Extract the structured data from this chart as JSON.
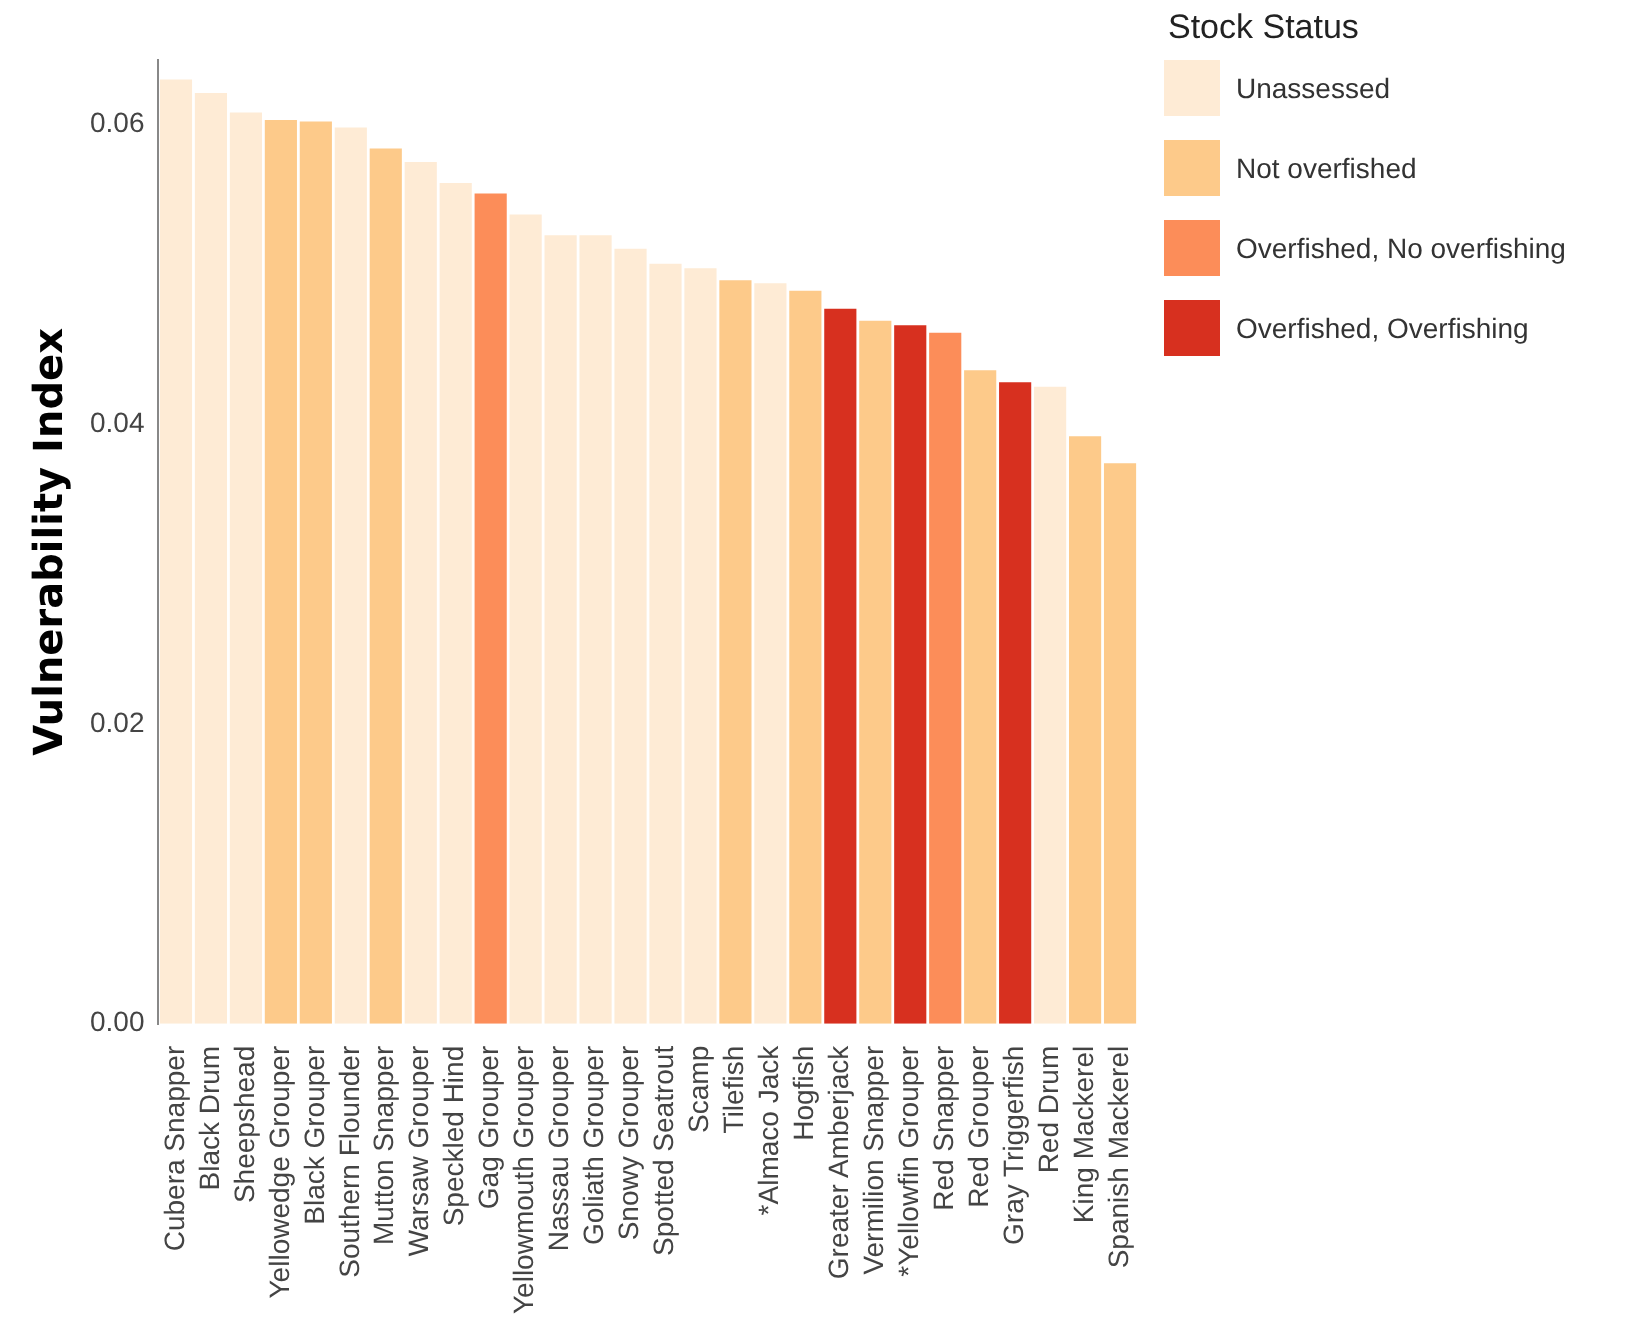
{
  "chart_data": {
    "type": "bar",
    "ylabel": "Vulnerability Index",
    "legend_title": "Stock Status",
    "categories": [
      "Cubera Snapper",
      "Black Drum",
      "Sheepshead",
      "Yellowedge Grouper",
      "Black Grouper",
      "Southern Flounder",
      "Mutton Snapper",
      "Warsaw Grouper",
      "Speckled Hind",
      "Gag Grouper",
      "Yellowmouth Grouper",
      "Nassau Grouper",
      "Goliath Grouper",
      "Snowy Grouper",
      "Spotted Seatrout",
      "Scamp",
      "Tilefish",
      "*Almaco Jack",
      "Hogfish",
      "Greater Amberjack",
      "Vermilion Snapper",
      "*Yellowfin Grouper",
      "Red Snapper",
      "Red Grouper",
      "Gray Triggerfish",
      "Red Drum",
      "King Mackerel",
      "Spanish Mackerel"
    ],
    "stacked": true,
    "series": [
      {
        "name": "Unassessed",
        "color": "#feebd5",
        "values": [
          0.063,
          0.0621,
          0.0608,
          null,
          null,
          0.0598,
          null,
          0.0575,
          0.0561,
          null,
          0.054,
          0.0526,
          0.0526,
          0.0517,
          0.0507,
          0.0504,
          null,
          0.0494,
          null,
          null,
          null,
          null,
          null,
          null,
          null,
          0.0425,
          null,
          null
        ]
      },
      {
        "name": "Not overfished",
        "color": "#fdca8a",
        "values": [
          null,
          null,
          null,
          0.0603,
          0.0602,
          null,
          0.0584,
          null,
          null,
          null,
          null,
          null,
          null,
          null,
          null,
          null,
          0.0496,
          null,
          0.0489,
          null,
          0.0469,
          null,
          null,
          0.0436,
          null,
          null,
          0.0392,
          0.0374
        ]
      },
      {
        "name": "Overfished, No overfishing",
        "color": "#fc8d59",
        "values": [
          null,
          null,
          null,
          null,
          null,
          null,
          null,
          null,
          null,
          0.0554,
          null,
          null,
          null,
          null,
          null,
          null,
          null,
          null,
          null,
          null,
          null,
          null,
          0.0461,
          null,
          null,
          null,
          null,
          null
        ]
      },
      {
        "name": "Overfished, Overfishing",
        "color": "#d7301f",
        "values": [
          null,
          null,
          null,
          null,
          null,
          null,
          null,
          null,
          null,
          null,
          null,
          null,
          null,
          null,
          null,
          null,
          null,
          null,
          null,
          0.0477,
          null,
          0.0466,
          null,
          null,
          0.0428,
          null,
          null,
          null
        ]
      }
    ],
    "ylim": [
      0,
      0.0643
    ],
    "yticks": [
      {
        "value": 0,
        "label": "0.00"
      },
      {
        "value": 0.02,
        "label": "0.02"
      },
      {
        "value": 0.04,
        "label": "0.04"
      },
      {
        "value": 0.06,
        "label": "0.06"
      }
    ],
    "grid": false,
    "legend": "top right"
  }
}
